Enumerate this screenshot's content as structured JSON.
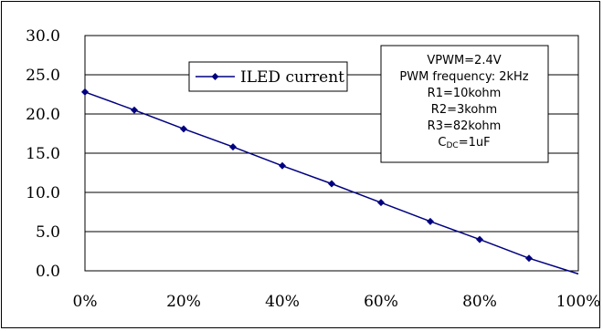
{
  "chart_data": {
    "type": "line",
    "title": "",
    "xlabel": "",
    "ylabel": "",
    "x": [
      0,
      10,
      20,
      30,
      40,
      50,
      60,
      70,
      80,
      90,
      100
    ],
    "xlim": [
      0,
      100
    ],
    "ylim": [
      0,
      30
    ],
    "x_ticks": [
      "0%",
      "20%",
      "40%",
      "60%",
      "80%",
      "100%"
    ],
    "y_ticks": [
      "0.0",
      "5.0",
      "10.0",
      "15.0",
      "20.0",
      "25.0",
      "30.0"
    ],
    "grid": "horizontal",
    "legend_position": "top-left",
    "series": [
      {
        "name": "ILED current",
        "color": "#000080",
        "marker": "diamond",
        "values": [
          22.8,
          20.5,
          18.1,
          15.8,
          13.4,
          11.1,
          8.7,
          6.3,
          4.0,
          1.6,
          -0.4
        ]
      }
    ],
    "annotation_lines": [
      "VPWM=2.4V",
      "PWM frequency: 2kHz",
      "R1=10kohm",
      "R2=3kohm",
      "R3=82kohm",
      "C",
      "DC",
      "=1uF"
    ]
  }
}
